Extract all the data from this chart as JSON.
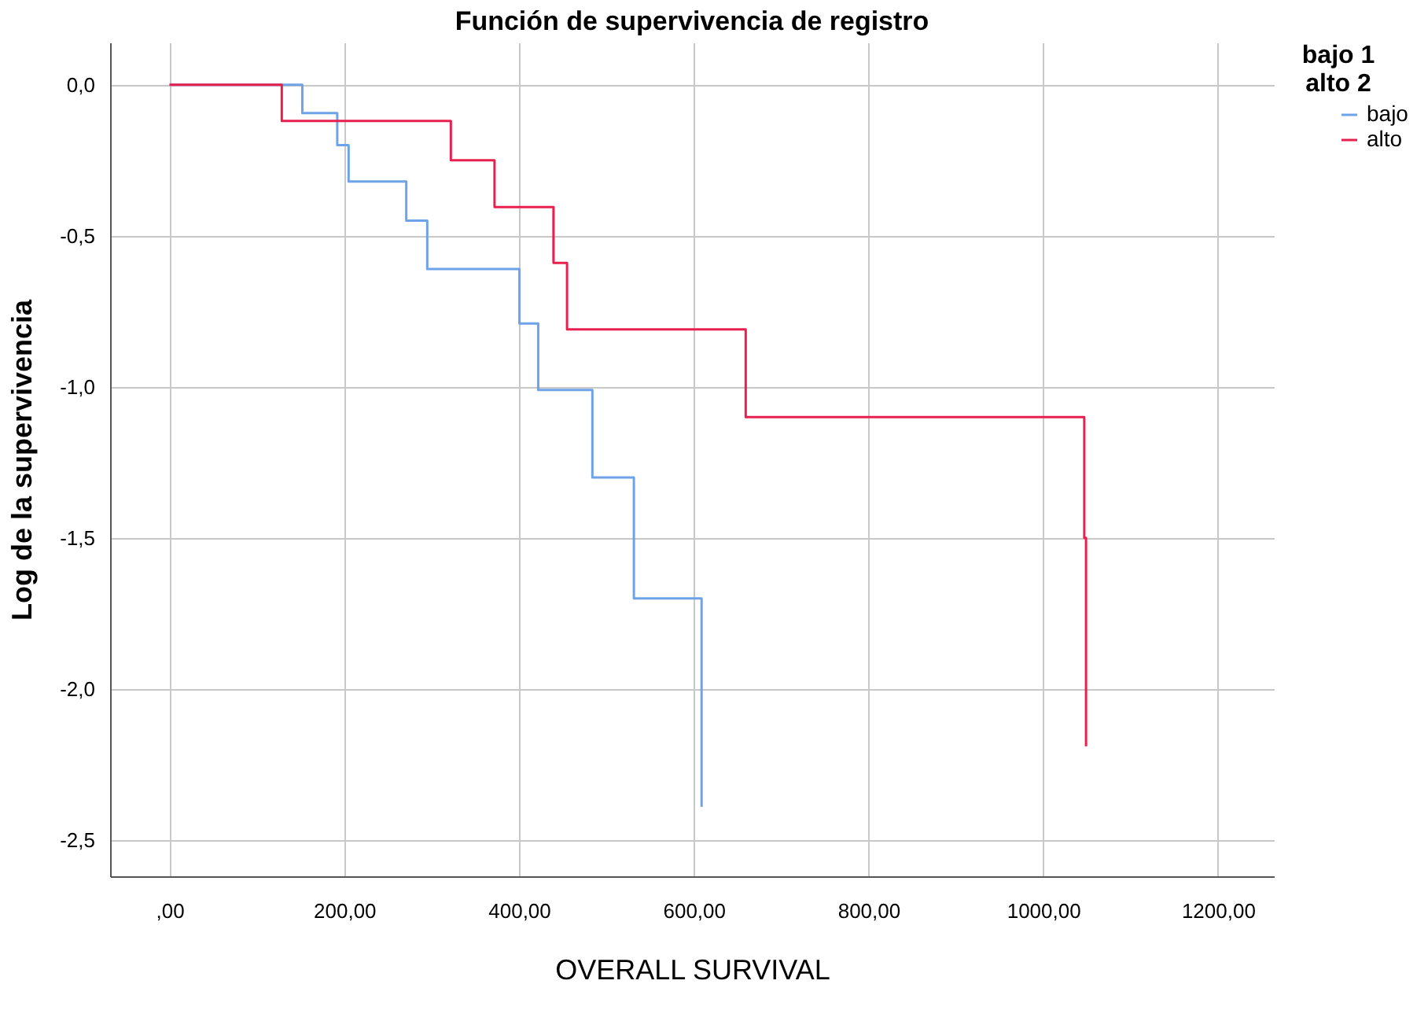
{
  "chart_data": {
    "type": "step",
    "title": "Función de supervivencia de registro",
    "xlabel": "OVERALL SURVIVAL",
    "ylabel": "Log de la supervivencia",
    "legend_title": "bajo 1\nalto 2",
    "series": [
      {
        "name": "bajo",
        "color": "#6fa3e8",
        "x": [
          0,
          152,
          192,
          205,
          271,
          295,
          400.5,
          422,
          484,
          531.5,
          609,
          609
        ],
        "values": [
          0,
          -0.094,
          -0.2,
          -0.32,
          -0.45,
          -0.61,
          -0.79,
          -1.01,
          -1.3,
          -1.7,
          -1.7,
          -2.39
        ]
      },
      {
        "name": "alto",
        "color": "#e8204f",
        "x": [
          0,
          128.5,
          322,
          372,
          439.5,
          455,
          659.5,
          1047,
          1049,
          1049
        ],
        "values": [
          0,
          -0.12,
          -0.25,
          -0.405,
          -0.59,
          -0.81,
          -1.1,
          -1.5,
          -1.5,
          -2.19
        ]
      }
    ],
    "xlim": [
      -68,
      1264
    ],
    "ylim": [
      -2.62,
      0.14
    ],
    "xticks": [
      {
        "value": 0,
        "label": ",00"
      },
      {
        "value": 200,
        "label": "200,00"
      },
      {
        "value": 400,
        "label": "400,00"
      },
      {
        "value": 600,
        "label": "600,00"
      },
      {
        "value": 800,
        "label": "800,00"
      },
      {
        "value": 1000,
        "label": "1000,00"
      },
      {
        "value": 1200,
        "label": "1200,00"
      }
    ],
    "yticks": [
      {
        "value": 0,
        "label": "0,0"
      },
      {
        "value": -0.5,
        "label": "-0,5"
      },
      {
        "value": -1,
        "label": "-1,0"
      },
      {
        "value": -1.5,
        "label": "-1,5"
      },
      {
        "value": -2,
        "label": "-2,0"
      },
      {
        "value": -2.5,
        "label": "-2,5"
      }
    ],
    "grid": true,
    "legend": "top right",
    "line_style": "solid"
  }
}
